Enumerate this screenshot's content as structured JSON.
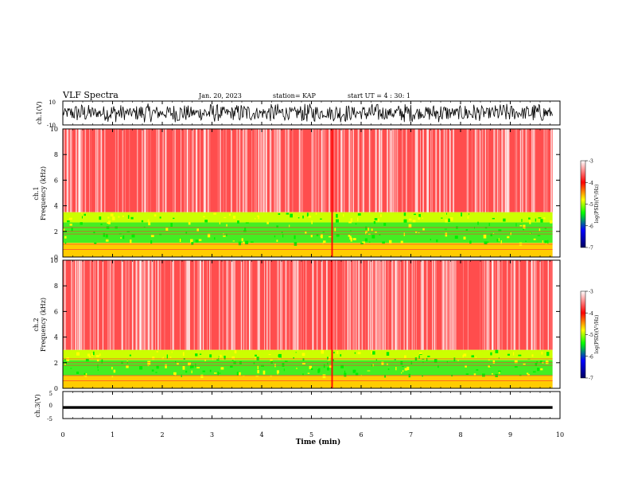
{
  "header": {
    "title": "VLF Spectra",
    "date": "Jan. 20, 2023",
    "station": "station= KAP",
    "start_ut": "start  UT =   4 : 30: 1"
  },
  "chart_data": [
    {
      "type": "line",
      "ylabel": "ch.1(V)",
      "ylim": [
        -10,
        10
      ],
      "ytick_labels": [
        "10",
        "-10"
      ],
      "xlim": [
        0,
        10
      ],
      "description_values": "dense waveform spanning roughly -8 to +8 V"
    },
    {
      "type": "heatmap",
      "ylabel": "ch.1\nFrequency (kHz)",
      "ylabel_line1": "ch.1",
      "ylabel_line2": "Frequency (kHz)",
      "ylim": [
        0,
        10
      ],
      "ytick_labels": [
        "0",
        "2",
        "4",
        "6",
        "8",
        "10"
      ],
      "xlim": [
        0,
        9.85
      ],
      "bands": [
        {
          "from_khz": 3.5,
          "to_khz": 10,
          "level": -3.9
        },
        {
          "from_khz": 2.7,
          "to_khz": 3.5,
          "level": -4.7
        },
        {
          "from_khz": 1.1,
          "to_khz": 2.7,
          "level": -5.0
        },
        {
          "from_khz": 0,
          "to_khz": 1.1,
          "level": -4.3
        }
      ],
      "colorbar": {
        "label": "log(PSD)(V²/Hz)",
        "ticks": [
          "-3",
          "-4",
          "-5",
          "-6",
          "-7"
        ],
        "range": [
          -7,
          -3
        ]
      }
    },
    {
      "type": "heatmap",
      "ylabel": "ch.2\nFrequency (kHz)",
      "ylabel_line1": "ch.2",
      "ylabel_line2": "Frequency (kHz)",
      "ylim": [
        0,
        10
      ],
      "ytick_labels": [
        "0",
        "2",
        "4",
        "6",
        "8",
        "10"
      ],
      "xlim": [
        0,
        9.85
      ],
      "bands": [
        {
          "from_khz": 3.0,
          "to_khz": 10,
          "level": -3.9
        },
        {
          "from_khz": 2.2,
          "to_khz": 3.0,
          "level": -4.7
        },
        {
          "from_khz": 1.0,
          "to_khz": 2.2,
          "level": -5.0
        },
        {
          "from_khz": 0,
          "to_khz": 1.0,
          "level": -4.3
        }
      ],
      "colorbar": {
        "label": "log(PSD)(V²/Hz)",
        "ticks": [
          "-3",
          "-4",
          "-5",
          "-6",
          "-7"
        ],
        "range": [
          -7,
          -3
        ]
      }
    },
    {
      "type": "line",
      "ylabel": "ch.3(V)",
      "ylim": [
        -5,
        5
      ],
      "ytick_labels": [
        "5",
        "0",
        "-5"
      ],
      "xlim": [
        0,
        9.85
      ],
      "description_values": "near-constant signal around -1 V"
    }
  ],
  "x_axis": {
    "label": "Time (min)",
    "range": [
      0,
      10
    ],
    "tick_labels": [
      "0",
      "1",
      "2",
      "3",
      "4",
      "5",
      "6",
      "7",
      "8",
      "9",
      "10"
    ]
  },
  "colors": {
    "background": "#ffffff",
    "high": "#ff0000",
    "mid": "#ffff00",
    "low": "#00ff00",
    "trace": "#000000"
  }
}
